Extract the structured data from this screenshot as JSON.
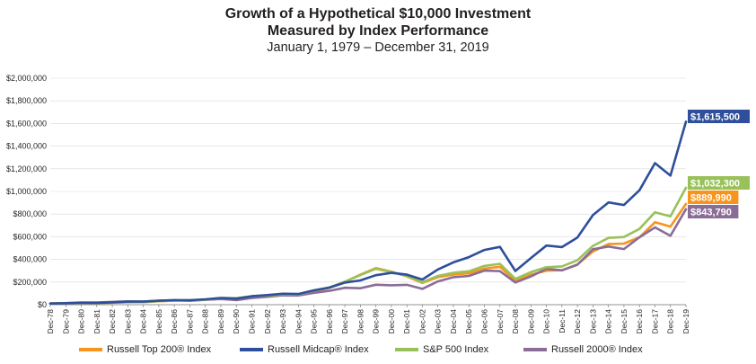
{
  "header": {
    "title_line1": "Growth of a Hypothetical $10,000 Investment",
    "title_line2": "Measured by Index Performance",
    "subtitle": "January 1, 1979 – December 31, 2019"
  },
  "chart_data": {
    "type": "line",
    "title": "Growth of a Hypothetical $10,000 Investment Measured by Index Performance",
    "subtitle": "January 1, 1979 – December 31, 2019",
    "xlabel": "",
    "ylabel": "",
    "ylim": [
      0,
      2000000
    ],
    "y_ticks": [
      0,
      200000,
      400000,
      600000,
      800000,
      1000000,
      1200000,
      1400000,
      1600000,
      1800000,
      2000000
    ],
    "y_tick_labels": [
      "$0",
      "$200,000",
      "$400,000",
      "$600,000",
      "$800,000",
      "$1,000,000",
      "$1,200,000",
      "$1,400,000",
      "$1,600,000",
      "$1,800,000",
      "$2,000,000"
    ],
    "x_tick_labels": [
      "Dec-78",
      "Dec-79",
      "Dec-80",
      "Dec-81",
      "Dec-82",
      "Dec-83",
      "Dec-84",
      "Dec-85",
      "Dec-86",
      "Dec-87",
      "Dec-88",
      "Dec-89",
      "Dec-90",
      "Dec-91",
      "Dec-92",
      "Dec-93",
      "Dec-94",
      "Dec-95",
      "Dec-96",
      "Dec-97",
      "Dec-98",
      "Dec-99",
      "Dec-00",
      "Dec-01",
      "Dec-02",
      "Dec-03",
      "Dec-04",
      "Dec-05",
      "Dec-06",
      "Dec-07",
      "Dec-08",
      "Dec-09",
      "Dec-10",
      "Dec-11",
      "Dec-12",
      "Dec-13",
      "Dec-14",
      "Dec-15",
      "Dec-16",
      "Dec-17",
      "Dec-18",
      "Dec-19"
    ],
    "x_years": [
      1978,
      1979,
      1980,
      1981,
      1982,
      1983,
      1984,
      1985,
      1986,
      1987,
      1988,
      1989,
      1990,
      1991,
      1992,
      1993,
      1994,
      1995,
      1996,
      1997,
      1998,
      1999,
      2000,
      2001,
      2002,
      2003,
      2004,
      2005,
      2006,
      2007,
      2008,
      2009,
      2010,
      2011,
      2012,
      2013,
      2014,
      2015,
      2016,
      2017,
      2018,
      2019
    ],
    "grid": "horizontal",
    "legend_position": "bottom",
    "series": [
      {
        "name": "Russell Top 200® Index",
        "color": "#f7941d",
        "end_label": "$889,990",
        "values": [
          10000,
          11800,
          15300,
          14300,
          17600,
          21400,
          22600,
          30200,
          35900,
          37400,
          43300,
          57300,
          55200,
          72800,
          77800,
          84600,
          85300,
          118700,
          148500,
          202600,
          265000,
          323000,
          291000,
          250000,
          192000,
          243000,
          266000,
          277000,
          318000,
          335000,
          210000,
          265000,
          300000,
          305000,
          355000,
          470000,
          535000,
          540000,
          595000,
          728000,
          690000,
          889990
        ]
      },
      {
        "name": "Russell Midcap® Index",
        "color": "#2e4f9c",
        "end_label": "$1,615,500",
        "values": [
          10000,
          13000,
          17200,
          17000,
          21000,
          27000,
          27000,
          35300,
          40800,
          40000,
          47300,
          59700,
          53000,
          74300,
          85300,
          97000,
          94700,
          127000,
          151000,
          195000,
          214000,
          260000,
          281000,
          265000,
          222000,
          311000,
          374000,
          420000,
          483000,
          510000,
          298000,
          412000,
          522000,
          509000,
          593000,
          792000,
          903000,
          880000,
          1010000,
          1250000,
          1140000,
          1615500
        ]
      },
      {
        "name": "S&P 500 Index",
        "color": "#99c15a",
        "end_label": "$1,032,300",
        "values": [
          10000,
          11800,
          15700,
          14900,
          18100,
          22200,
          23600,
          31000,
          36800,
          38800,
          45200,
          59400,
          57600,
          75200,
          80900,
          89000,
          90200,
          124000,
          152500,
          203300,
          261500,
          316500,
          287700,
          253500,
          197500,
          254200,
          281800,
          295600,
          342200,
          361000,
          227400,
          287600,
          330900,
          337900,
          392000,
          518900,
          589900,
          598000,
          669400,
          815500,
          779800,
          1032300
        ]
      },
      {
        "name": "Russell 2000® Index",
        "color": "#8a6d97",
        "end_label": "$843,790",
        "values": [
          10000,
          14300,
          19100,
          19500,
          24300,
          29500,
          27700,
          35800,
          37800,
          34500,
          43100,
          50100,
          40400,
          59000,
          69800,
          82900,
          81500,
          104700,
          122000,
          149300,
          145500,
          176400,
          171100,
          175400,
          139600,
          205500,
          243100,
          254200,
          300900,
          296200,
          196100,
          249400,
          316400,
          303200,
          352800,
          489800,
          513700,
          491000,
          595600,
          682900,
          607700,
          843790
        ]
      }
    ]
  },
  "legend": {
    "items": [
      {
        "label": "Russell Top 200® Index",
        "color": "#f7941d"
      },
      {
        "label": "Russell Midcap® Index",
        "color": "#2e4f9c"
      },
      {
        "label": "S&P 500 Index",
        "color": "#99c15a"
      },
      {
        "label": "Russell 2000® Index",
        "color": "#8a6d97"
      }
    ]
  }
}
